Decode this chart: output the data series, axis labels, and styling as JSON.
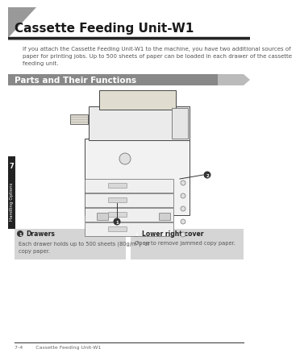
{
  "title": "Cassette Feeding Unit-W1",
  "intro_text": "If you attach the Cassette Feeding Unit-W1 to the machine, you have two additional sources of\npaper for printing jobs. Up to 500 sheets of paper can be loaded in each drawer of the cassette\nfeeding unit.",
  "section_title": "Parts and Their Functions",
  "callout1_label": "Drawers",
  "callout1_text": "Each drawer holds up to 500 sheets (80g/m²)  of\ncopy paper.",
  "callout2_label": "Lower right cover",
  "callout2_text": "Open to remove jammed copy paper.",
  "footer_text": "7-4        Cassette Feeding Unit-W1",
  "bg_color": "#ffffff",
  "header_triangle_color": "#999999",
  "section_bar_color": "#888888",
  "tab_color": "#222222",
  "tab_text": "7",
  "tab_label": "Handling Options",
  "body_text_color": "#555555",
  "footer_line_color": "#444444",
  "callout_box_color": "#d5d5d5",
  "title_fontsize": 11,
  "intro_fontsize": 5.0,
  "section_fontsize": 7.5,
  "callout_label_fontsize": 5.5,
  "callout_text_fontsize": 4.8,
  "footer_fontsize": 4.5
}
